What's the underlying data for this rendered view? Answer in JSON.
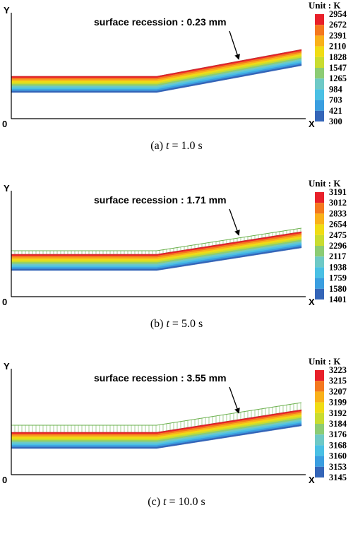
{
  "panels": [
    {
      "id": "a",
      "y_label": "Y",
      "x_label": "X",
      "origin_label": "0",
      "annotation": "surface recession : 0.23 mm",
      "unit_label": "Unit : K",
      "legend_values": [
        "2954",
        "2672",
        "2391",
        "2110",
        "1828",
        "1547",
        "1265",
        "984",
        "703",
        "421",
        "300"
      ],
      "caption_prefix": "(a) ",
      "caption_var": "t",
      "caption_value": " = 1.0 s",
      "recession_hatch": false
    },
    {
      "id": "b",
      "y_label": "Y",
      "x_label": "X",
      "origin_label": "0",
      "annotation": "surface recession : 1.71 mm",
      "unit_label": "Unit : K",
      "legend_values": [
        "3191",
        "3012",
        "2833",
        "2654",
        "2475",
        "2296",
        "2117",
        "1938",
        "1759",
        "1580",
        "1401"
      ],
      "caption_prefix": "(b) ",
      "caption_var": "t",
      "caption_value": " = 5.0 s",
      "recession_hatch": true
    },
    {
      "id": "c",
      "y_label": "Y",
      "x_label": "X",
      "origin_label": "0",
      "annotation": "surface recession : 3.55 mm",
      "unit_label": "Unit : K",
      "legend_values": [
        "3223",
        "3215",
        "3207",
        "3199",
        "3192",
        "3184",
        "3176",
        "3168",
        "3160",
        "3153",
        "3145"
      ],
      "caption_prefix": "(c) ",
      "caption_var": "t",
      "caption_value": " = 10.0 s",
      "recession_hatch": true
    }
  ],
  "colors": {
    "scale": [
      "#e8202a",
      "#f4781e",
      "#f9b11a",
      "#f0dc14",
      "#c9dc30",
      "#8ccc74",
      "#6ec9c6",
      "#4ac0e4",
      "#3a9ee0",
      "#3465b8"
    ],
    "layers": [
      "#e8202a",
      "#f4781e",
      "#f9b11a",
      "#f0dc14",
      "#c9dc30",
      "#8ccc74",
      "#6ec9c6",
      "#4ac0e4",
      "#3a9ee0",
      "#3465b8"
    ],
    "hatch": "#6ab04c"
  }
}
